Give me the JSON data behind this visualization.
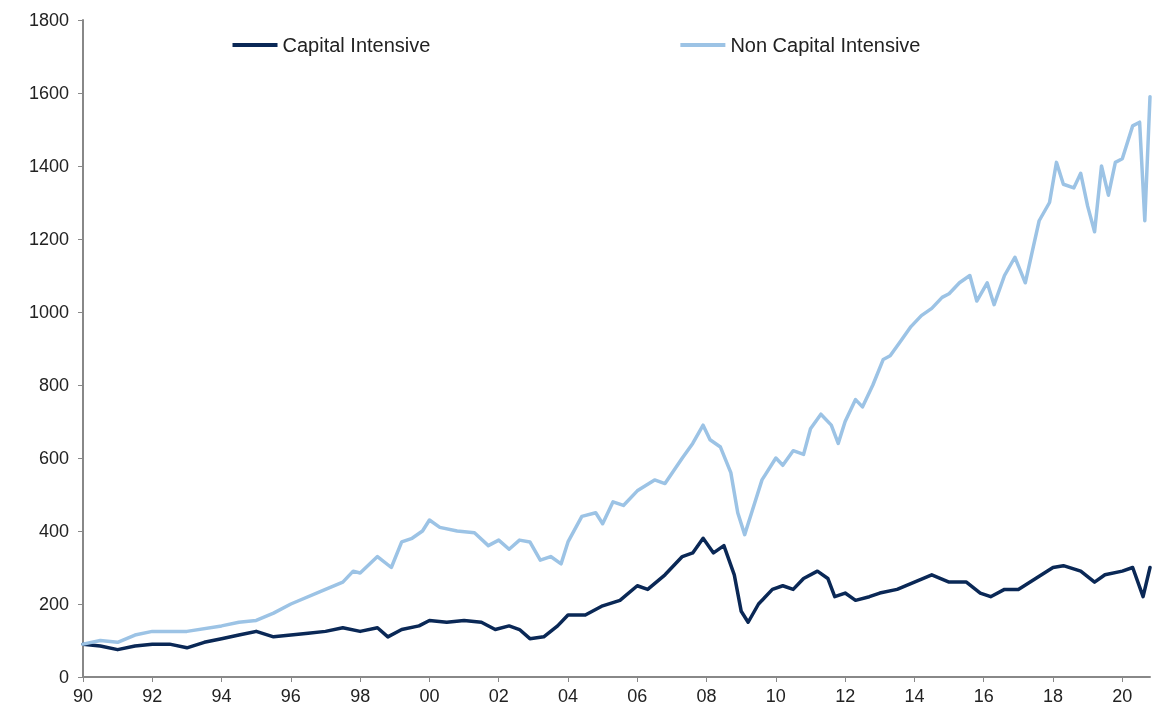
{
  "chart_data": {
    "type": "line",
    "legend": "top",
    "grid": false,
    "marker": "none",
    "line_style": "solid",
    "xlim": [
      1990,
      2020.8
    ],
    "xticks": [
      {
        "value": 1990,
        "label": "90"
      },
      {
        "value": 1992,
        "label": "92"
      },
      {
        "value": 1994,
        "label": "94"
      },
      {
        "value": 1996,
        "label": "96"
      },
      {
        "value": 1998,
        "label": "98"
      },
      {
        "value": 2000,
        "label": "00"
      },
      {
        "value": 2002,
        "label": "02"
      },
      {
        "value": 2004,
        "label": "04"
      },
      {
        "value": 2006,
        "label": "06"
      },
      {
        "value": 2008,
        "label": "08"
      },
      {
        "value": 2010,
        "label": "10"
      },
      {
        "value": 2012,
        "label": "12"
      },
      {
        "value": 2014,
        "label": "14"
      },
      {
        "value": 2016,
        "label": "16"
      },
      {
        "value": 2018,
        "label": "18"
      },
      {
        "value": 2020,
        "label": "20"
      }
    ],
    "ylim": [
      0,
      1800
    ],
    "yticks": [
      0,
      200,
      400,
      600,
      800,
      1000,
      1200,
      1400,
      1600,
      1800
    ],
    "series": [
      {
        "name": "Capital Intensive",
        "color": "#0a2856",
        "x": [
          1990,
          1990.5,
          1991,
          1991.5,
          1992,
          1992.5,
          1993,
          1993.5,
          1994,
          1994.5,
          1995,
          1995.5,
          1996,
          1996.5,
          1997,
          1997.5,
          1998,
          1998.5,
          1998.8,
          1999.2,
          1999.7,
          2000,
          2000.5,
          2001,
          2001.5,
          2001.9,
          2002.3,
          2002.6,
          2002.9,
          2003.3,
          2003.7,
          2004,
          2004.5,
          2005,
          2005.5,
          2006,
          2006.3,
          2006.8,
          2007.3,
          2007.6,
          2007.9,
          2008.2,
          2008.5,
          2008.8,
          2009,
          2009.2,
          2009.5,
          2009.9,
          2010.2,
          2010.5,
          2010.8,
          2011.2,
          2011.5,
          2011.7,
          2012,
          2012.3,
          2012.7,
          2013,
          2013.5,
          2014,
          2014.5,
          2015,
          2015.5,
          2015.9,
          2016.2,
          2016.6,
          2017,
          2017.5,
          2018,
          2018.3,
          2018.8,
          2019.2,
          2019.5,
          2020,
          2020.3,
          2020.6,
          2020.8
        ],
        "values": [
          90,
          85,
          75,
          85,
          90,
          90,
          80,
          95,
          105,
          115,
          125,
          110,
          115,
          120,
          125,
          135,
          125,
          135,
          110,
          130,
          140,
          155,
          150,
          155,
          150,
          130,
          140,
          130,
          105,
          110,
          140,
          170,
          170,
          195,
          210,
          250,
          240,
          280,
          330,
          340,
          380,
          340,
          360,
          280,
          180,
          150,
          200,
          240,
          250,
          240,
          270,
          290,
          270,
          220,
          230,
          210,
          220,
          230,
          240,
          260,
          280,
          260,
          260,
          230,
          220,
          240,
          240,
          270,
          300,
          305,
          290,
          260,
          280,
          290,
          300,
          220,
          300
        ]
      },
      {
        "name": "Non Capital Intensive",
        "color": "#9cc3e5",
        "x": [
          1990,
          1990.5,
          1991,
          1991.5,
          1992,
          1993,
          1994,
          1994.5,
          1995,
          1995.5,
          1996,
          1997,
          1997.5,
          1997.8,
          1998,
          1998.5,
          1998.9,
          1999.2,
          1999.5,
          1999.8,
          2000,
          2000.3,
          2000.8,
          2001.3,
          2001.7,
          2002,
          2002.3,
          2002.6,
          2002.9,
          2003.2,
          2003.5,
          2003.8,
          2004,
          2004.4,
          2004.8,
          2005,
          2005.3,
          2005.6,
          2006,
          2006.5,
          2006.8,
          2007.3,
          2007.6,
          2007.9,
          2008.1,
          2008.4,
          2008.7,
          2008.9,
          2009.1,
          2009.3,
          2009.6,
          2010,
          2010.2,
          2010.5,
          2010.8,
          2011,
          2011.3,
          2011.6,
          2011.8,
          2012,
          2012.3,
          2012.5,
          2012.8,
          2013.1,
          2013.3,
          2013.6,
          2013.9,
          2014.2,
          2014.5,
          2014.8,
          2015,
          2015.3,
          2015.6,
          2015.8,
          2016.1,
          2016.3,
          2016.6,
          2016.9,
          2017.2,
          2017.6,
          2017.9,
          2018.1,
          2018.3,
          2018.6,
          2018.8,
          2019,
          2019.2,
          2019.4,
          2019.6,
          2019.8,
          2020,
          2020.3,
          2020.5,
          2020.65,
          2020.8
        ],
        "values": [
          90,
          100,
          95,
          115,
          125,
          125,
          140,
          150,
          155,
          175,
          200,
          240,
          260,
          290,
          285,
          330,
          300,
          370,
          380,
          400,
          430,
          410,
          400,
          395,
          360,
          375,
          350,
          375,
          370,
          320,
          330,
          310,
          370,
          440,
          450,
          420,
          480,
          470,
          510,
          540,
          530,
          600,
          640,
          690,
          650,
          630,
          560,
          450,
          390,
          450,
          540,
          600,
          580,
          620,
          610,
          680,
          720,
          690,
          640,
          700,
          760,
          740,
          800,
          870,
          880,
          920,
          960,
          990,
          1010,
          1040,
          1050,
          1080,
          1100,
          1030,
          1080,
          1020,
          1100,
          1150,
          1080,
          1250,
          1300,
          1410,
          1350,
          1340,
          1380,
          1290,
          1220,
          1400,
          1320,
          1410,
          1420,
          1510,
          1520,
          1250,
          1590
        ]
      }
    ]
  }
}
